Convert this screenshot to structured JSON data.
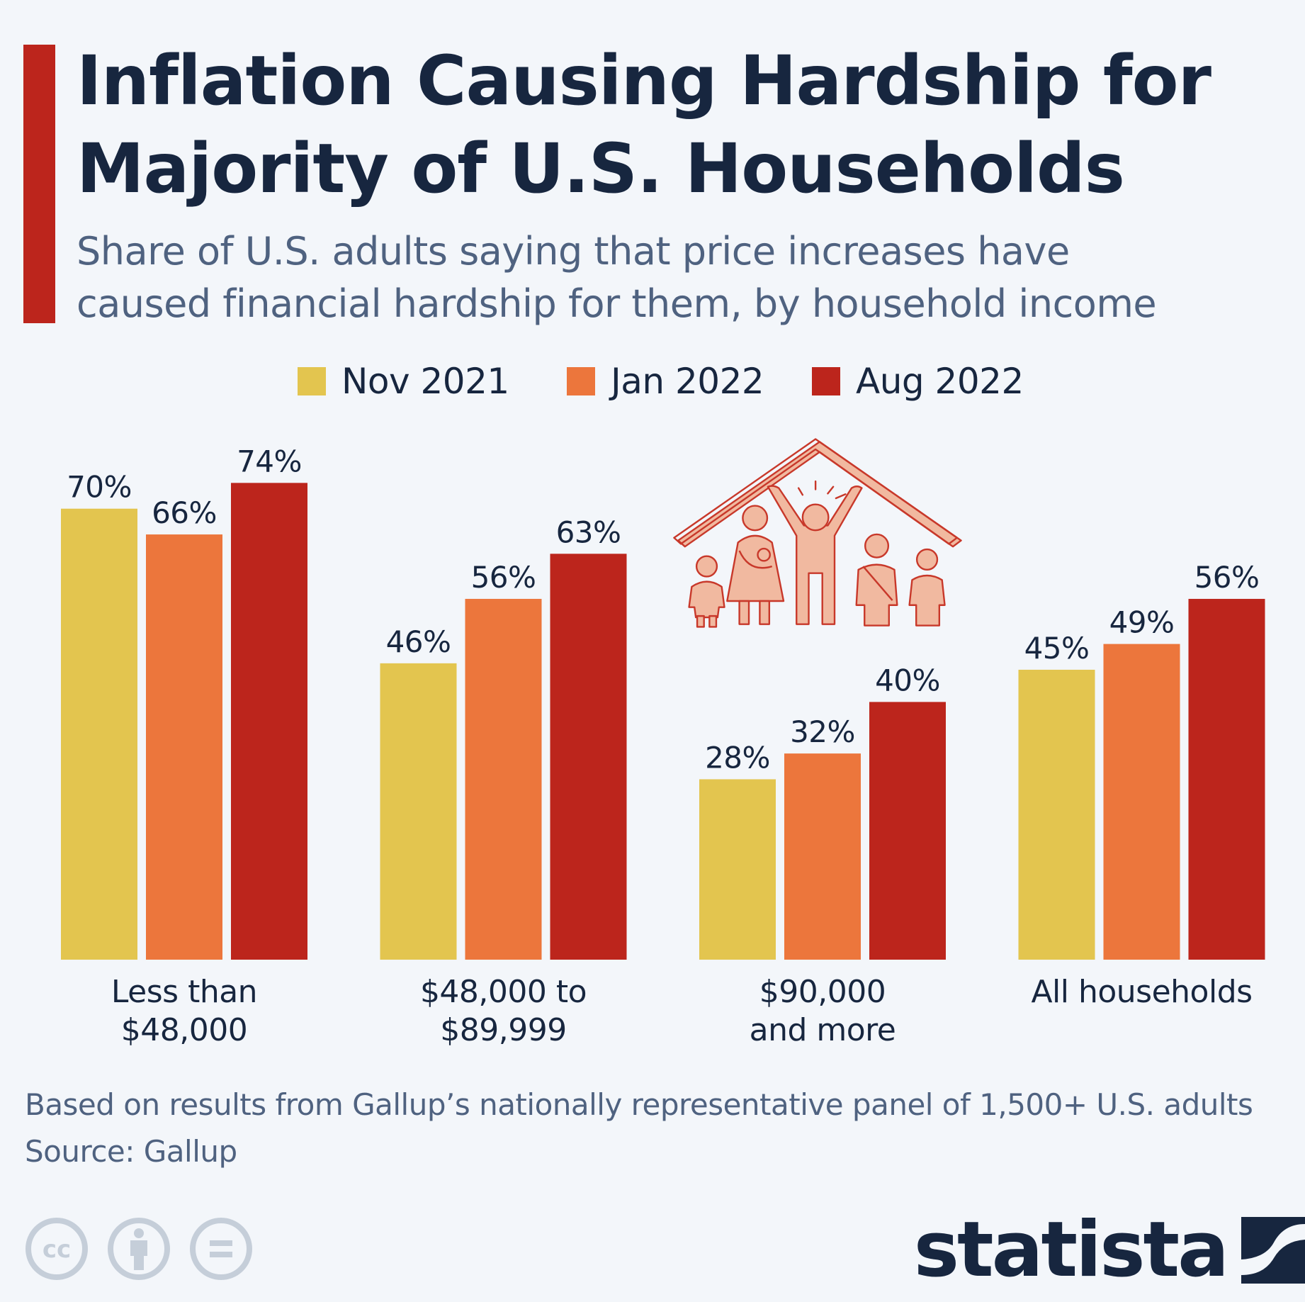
{
  "header": {
    "title_line1": "Inflation Causing Hardship for",
    "title_line2": "Majority of U.S. Households",
    "subtitle_line1": "Share of U.S. adults saying that price increases have",
    "subtitle_line2": "caused financial hardship for them, by household income"
  },
  "colors": {
    "accent": "#bc251c",
    "nov_2021": "#e3c54f",
    "jan_2022": "#ec763c",
    "aug_2022": "#bc251c",
    "text": "#17263f",
    "muted_text": "#4f6280",
    "background": "#f3f6fa",
    "illustration": "#d9462a",
    "cc_icons": "#c5ced9"
  },
  "legend": [
    {
      "label": "Nov 2021",
      "color": "#e3c54f"
    },
    {
      "label": "Jan 2022",
      "color": "#ec763c"
    },
    {
      "label": "Aug 2022",
      "color": "#bc251c"
    }
  ],
  "chart_data": {
    "type": "bar",
    "title": "Inflation Causing Hardship for Majority of U.S. Households",
    "subtitle": "Share of U.S. adults saying that price increases have caused financial hardship for them, by household income",
    "categories": [
      [
        "Less than",
        "$48,000"
      ],
      [
        "$48,000 to",
        "$89,999"
      ],
      [
        "$90,000",
        "and more"
      ],
      [
        "All households"
      ]
    ],
    "series": [
      {
        "name": "Nov 2021",
        "color": "#e3c54f",
        "values": [
          70,
          46,
          28,
          45
        ]
      },
      {
        "name": "Jan 2022",
        "color": "#ec763c",
        "values": [
          66,
          56,
          32,
          49
        ]
      },
      {
        "name": "Aug 2022",
        "color": "#bc251c",
        "values": [
          74,
          63,
          40,
          56
        ]
      }
    ],
    "value_suffix": "%",
    "xlabel": "",
    "ylabel": "",
    "ylim": [
      0,
      100
    ],
    "grid": false,
    "legend_position": "top-center"
  },
  "footer": {
    "note": "Based on results from Gallup’s nationally representative panel of 1,500+ U.S. adults",
    "source": "Source: Gallup",
    "license_icons": [
      "cc-icon",
      "attribution-icon",
      "no-derivatives-icon"
    ],
    "cc_text": "cc",
    "brand": "statista"
  }
}
